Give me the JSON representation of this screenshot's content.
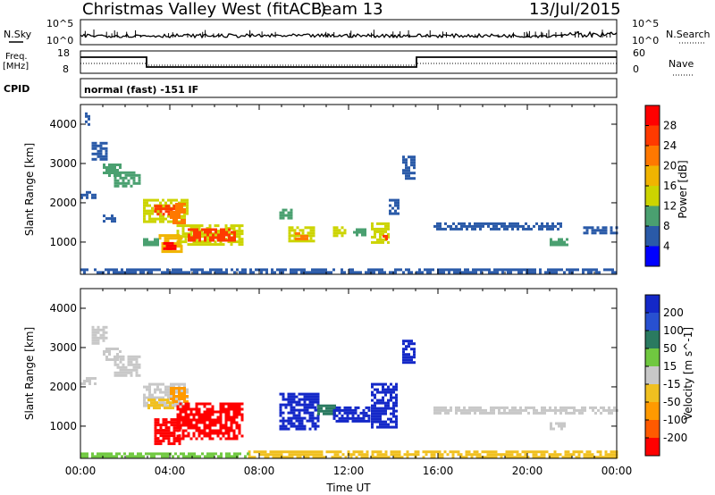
{
  "header": {
    "station": "Christmas Valley West (fitACF)",
    "beam": "Beam 13",
    "date": "13/Jul/2015"
  },
  "noise_panel": {
    "left_label": "N.Sky",
    "right_label": "N.Search",
    "left_ticks": [
      "10^5",
      "10^0"
    ],
    "right_ticks": [
      "10^5",
      "10^0"
    ]
  },
  "freq_panel": {
    "left_label_1": "Freq.",
    "left_label_2": "[MHz]",
    "right_label": "Nave",
    "left_ticks": [
      "18",
      "8"
    ],
    "right_ticks": [
      "60",
      "0"
    ]
  },
  "cpid": {
    "label": "CPID",
    "mode": "normal (fast) -151 IF"
  },
  "power_colorbar": {
    "label": "Power [dB]",
    "ticks": [
      "28",
      "24",
      "20",
      "16",
      "12",
      "8",
      "4"
    ],
    "colors": [
      "#ff0000",
      "#ff3a00",
      "#ff7800",
      "#f0b400",
      "#ccd400",
      "#4aa070",
      "#2a5aa8",
      "#0000ff"
    ]
  },
  "velocity_colorbar": {
    "label": "Velocity [m s^-1]",
    "ticks": [
      "200",
      "100",
      "50",
      "15",
      "-15",
      "-50",
      "-100",
      "-200"
    ],
    "colors": [
      "#1428c8",
      "#2850d0",
      "#2a7a60",
      "#70c840",
      "#c8c8c8",
      "#f0c020",
      "#ff9a00",
      "#ff5a00",
      "#ff0000"
    ]
  },
  "chart_data": [
    {
      "type": "heatmap",
      "name": "Power",
      "xlabel": "",
      "ylabel": "Slant Range [km]",
      "xlim": [
        0,
        24
      ],
      "ylim": [
        180,
        4500
      ],
      "y_ticks": [
        "1000",
        "2000",
        "3000",
        "4000"
      ],
      "cells": [
        {
          "x0": 0.2,
          "x1": 0.4,
          "y0": 4000,
          "y1": 4300,
          "level": 6
        },
        {
          "x0": 0.5,
          "x1": 1.2,
          "y0": 3100,
          "y1": 3550,
          "level": 6
        },
        {
          "x0": 1.0,
          "x1": 1.8,
          "y0": 2700,
          "y1": 3000,
          "level": 5
        },
        {
          "x0": 1.5,
          "x1": 2.6,
          "y0": 2400,
          "y1": 2800,
          "level": 5
        },
        {
          "x0": 0.0,
          "x1": 0.7,
          "y0": 2100,
          "y1": 2300,
          "level": 6
        },
        {
          "x0": 1.0,
          "x1": 1.5,
          "y0": 1500,
          "y1": 1700,
          "level": 6
        },
        {
          "x0": 2.8,
          "x1": 4.8,
          "y0": 1550,
          "y1": 2100,
          "level": 4
        },
        {
          "x0": 3.3,
          "x1": 4.3,
          "y0": 1700,
          "y1": 1950,
          "level": 1
        },
        {
          "x0": 4.0,
          "x1": 4.7,
          "y0": 1500,
          "y1": 2000,
          "level": 2
        },
        {
          "x0": 4.3,
          "x1": 7.2,
          "y0": 950,
          "y1": 1450,
          "level": 4
        },
        {
          "x0": 4.8,
          "x1": 6.9,
          "y0": 1050,
          "y1": 1350,
          "level": 1
        },
        {
          "x0": 3.5,
          "x1": 4.5,
          "y0": 750,
          "y1": 1200,
          "level": 3
        },
        {
          "x0": 3.7,
          "x1": 4.2,
          "y0": 850,
          "y1": 1000,
          "level": 0
        },
        {
          "x0": 2.8,
          "x1": 3.5,
          "y0": 900,
          "y1": 1100,
          "level": 5
        },
        {
          "x0": 8.9,
          "x1": 9.5,
          "y0": 1600,
          "y1": 1850,
          "level": 5
        },
        {
          "x0": 9.3,
          "x1": 10.4,
          "y0": 1000,
          "y1": 1400,
          "level": 4
        },
        {
          "x0": 9.6,
          "x1": 10.1,
          "y0": 1100,
          "y1": 1250,
          "level": 2
        },
        {
          "x0": 11.3,
          "x1": 11.9,
          "y0": 1150,
          "y1": 1400,
          "level": 4
        },
        {
          "x0": 12.2,
          "x1": 12.8,
          "y0": 1200,
          "y1": 1350,
          "level": 5
        },
        {
          "x0": 13.0,
          "x1": 13.8,
          "y0": 1000,
          "y1": 1500,
          "level": 4
        },
        {
          "x0": 13.4,
          "x1": 13.7,
          "y0": 1050,
          "y1": 1250,
          "level": 1
        },
        {
          "x0": 13.8,
          "x1": 14.2,
          "y0": 1700,
          "y1": 2100,
          "level": 6
        },
        {
          "x0": 14.4,
          "x1": 14.9,
          "y0": 2600,
          "y1": 3200,
          "level": 6
        },
        {
          "x0": 15.8,
          "x1": 21.5,
          "y0": 1300,
          "y1": 1500,
          "level": 6
        },
        {
          "x0": 21.0,
          "x1": 21.8,
          "y0": 950,
          "y1": 1100,
          "level": 5
        },
        {
          "x0": 22.5,
          "x1": 24.0,
          "y0": 1250,
          "y1": 1400,
          "level": 6
        },
        {
          "x0": 0.0,
          "x1": 24.0,
          "y0": 200,
          "y1": 330,
          "level": 6
        }
      ]
    },
    {
      "type": "heatmap",
      "name": "Velocity",
      "xlabel": "Time UT",
      "ylabel": "Slant Range [km]",
      "xlim": [
        0,
        24
      ],
      "ylim": [
        180,
        4500
      ],
      "x_ticks": [
        "00:00",
        "04:00",
        "08:00",
        "12:00",
        "16:00",
        "20:00",
        "00:00"
      ],
      "y_ticks": [
        "1000",
        "2000",
        "3000",
        "4000"
      ],
      "cells": [
        {
          "x0": 0.5,
          "x1": 1.2,
          "y0": 3100,
          "y1": 3550,
          "level": 4
        },
        {
          "x0": 1.0,
          "x1": 1.8,
          "y0": 2700,
          "y1": 3000,
          "level": 4
        },
        {
          "x0": 1.5,
          "x1": 2.6,
          "y0": 2300,
          "y1": 2800,
          "level": 4
        },
        {
          "x0": 0.0,
          "x1": 0.7,
          "y0": 2050,
          "y1": 2250,
          "level": 4
        },
        {
          "x0": 2.8,
          "x1": 4.8,
          "y0": 1550,
          "y1": 2100,
          "level": 4
        },
        {
          "x0": 3.0,
          "x1": 4.2,
          "y0": 1450,
          "y1": 1700,
          "level": 5
        },
        {
          "x0": 4.0,
          "x1": 4.8,
          "y0": 1600,
          "y1": 2000,
          "level": 6
        },
        {
          "x0": 4.3,
          "x1": 7.2,
          "y0": 700,
          "y1": 1600,
          "level": 8
        },
        {
          "x0": 3.3,
          "x1": 4.5,
          "y0": 550,
          "y1": 1200,
          "level": 8
        },
        {
          "x0": 8.9,
          "x1": 10.6,
          "y0": 900,
          "y1": 1850,
          "level": 0
        },
        {
          "x0": 10.6,
          "x1": 11.4,
          "y0": 1300,
          "y1": 1550,
          "level": 2
        },
        {
          "x0": 11.3,
          "x1": 12.9,
          "y0": 1100,
          "y1": 1500,
          "level": 0
        },
        {
          "x0": 13.0,
          "x1": 14.2,
          "y0": 1000,
          "y1": 2100,
          "level": 0
        },
        {
          "x0": 14.4,
          "x1": 14.9,
          "y0": 2600,
          "y1": 3200,
          "level": 0
        },
        {
          "x0": 15.8,
          "x1": 24.0,
          "y0": 1300,
          "y1": 1500,
          "level": 4
        },
        {
          "x0": 21.0,
          "x1": 21.8,
          "y0": 950,
          "y1": 1100,
          "level": 4
        },
        {
          "x0": 7.5,
          "x1": 24.0,
          "y0": 200,
          "y1": 380,
          "level": 5
        },
        {
          "x0": 0.0,
          "x1": 7.5,
          "y0": 200,
          "y1": 330,
          "level": 3
        }
      ]
    }
  ]
}
